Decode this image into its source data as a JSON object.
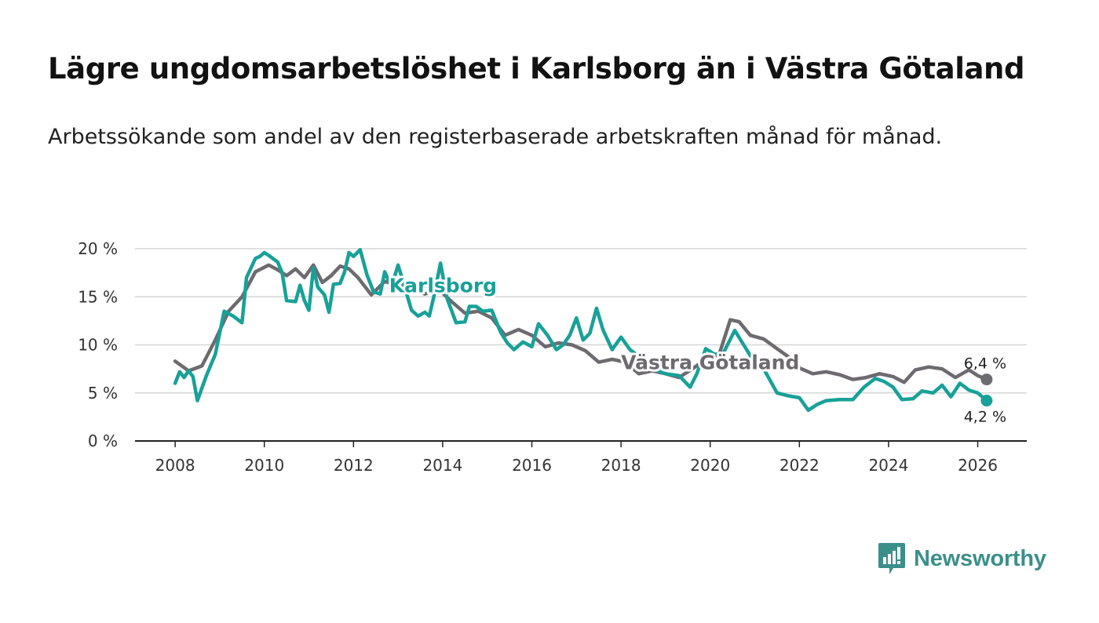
{
  "title": "Lägre ungdomsarbetslöshet i Karlsborg än i Västra Götaland",
  "subtitle": "Arbetssökande som andel av den registerbaserade arbetskraften månad för månad.",
  "brand": {
    "name": "Newsworthy",
    "color": "#3a8f8b"
  },
  "chart_data": {
    "type": "line",
    "title": "Lägre ungdomsarbetslöshet i Karlsborg än i Västra Götaland",
    "xlabel": "",
    "ylabel": "",
    "xlim": [
      2007.1,
      2027.1
    ],
    "ylim": [
      0,
      20
    ],
    "grid": true,
    "y_ticks": [
      0,
      5,
      10,
      15,
      20
    ],
    "y_tick_labels": [
      "0 %",
      "5 %",
      "10 %",
      "15 %",
      "20 %"
    ],
    "x_ticks": [
      2008,
      2010,
      2012,
      2014,
      2016,
      2018,
      2020,
      2022,
      2024,
      2026
    ],
    "x_tick_labels": [
      "2008",
      "2010",
      "2012",
      "2014",
      "2016",
      "2018",
      "2020",
      "2022",
      "2024",
      "2026"
    ],
    "series": [
      {
        "name": "Västra Götaland",
        "color": "#6d6a70",
        "end_label": "6,4 %",
        "points": [
          [
            2008.0,
            8.3
          ],
          [
            2008.3,
            7.3
          ],
          [
            2008.6,
            7.8
          ],
          [
            2008.9,
            10.5
          ],
          [
            2009.2,
            13.5
          ],
          [
            2009.5,
            15.0
          ],
          [
            2009.8,
            17.6
          ],
          [
            2010.1,
            18.3
          ],
          [
            2010.3,
            17.8
          ],
          [
            2010.5,
            17.2
          ],
          [
            2010.7,
            17.9
          ],
          [
            2010.9,
            17.0
          ],
          [
            2011.1,
            18.3
          ],
          [
            2011.3,
            16.5
          ],
          [
            2011.5,
            17.2
          ],
          [
            2011.7,
            18.2
          ],
          [
            2011.9,
            17.9
          ],
          [
            2012.1,
            17.0
          ],
          [
            2012.4,
            15.2
          ],
          [
            2012.7,
            16.6
          ],
          [
            2013.0,
            16.2
          ],
          [
            2013.3,
            15.8
          ],
          [
            2013.6,
            15.3
          ],
          [
            2013.9,
            15.8
          ],
          [
            2014.2,
            14.5
          ],
          [
            2014.5,
            13.3
          ],
          [
            2014.8,
            13.5
          ],
          [
            2015.1,
            12.8
          ],
          [
            2015.4,
            11.0
          ],
          [
            2015.7,
            11.6
          ],
          [
            2016.0,
            11.0
          ],
          [
            2016.3,
            9.8
          ],
          [
            2016.6,
            10.2
          ],
          [
            2016.9,
            10.0
          ],
          [
            2017.2,
            9.4
          ],
          [
            2017.5,
            8.2
          ],
          [
            2017.8,
            8.5
          ],
          [
            2018.1,
            8.2
          ],
          [
            2018.4,
            7.0
          ],
          [
            2018.7,
            7.3
          ],
          [
            2019.0,
            7.0
          ],
          [
            2019.3,
            6.6
          ],
          [
            2019.6,
            7.5
          ],
          [
            2019.9,
            8.5
          ],
          [
            2020.2,
            9.0
          ],
          [
            2020.45,
            12.6
          ],
          [
            2020.65,
            12.4
          ],
          [
            2020.9,
            11.0
          ],
          [
            2021.2,
            10.6
          ],
          [
            2021.5,
            9.6
          ],
          [
            2021.8,
            8.6
          ],
          [
            2022.0,
            7.6
          ],
          [
            2022.3,
            7.0
          ],
          [
            2022.6,
            7.2
          ],
          [
            2022.9,
            6.9
          ],
          [
            2023.2,
            6.4
          ],
          [
            2023.5,
            6.6
          ],
          [
            2023.8,
            7.0
          ],
          [
            2024.1,
            6.7
          ],
          [
            2024.35,
            6.1
          ],
          [
            2024.6,
            7.4
          ],
          [
            2024.9,
            7.7
          ],
          [
            2025.2,
            7.5
          ],
          [
            2025.5,
            6.6
          ],
          [
            2025.8,
            7.4
          ],
          [
            2026.0,
            6.8
          ],
          [
            2026.2,
            6.4
          ]
        ]
      },
      {
        "name": "Karlsborg",
        "color": "#18a198",
        "end_label": "4,2 %",
        "points": [
          [
            2008.0,
            6.0
          ],
          [
            2008.1,
            7.2
          ],
          [
            2008.2,
            6.6
          ],
          [
            2008.3,
            7.3
          ],
          [
            2008.4,
            6.7
          ],
          [
            2008.5,
            4.2
          ],
          [
            2008.7,
            6.8
          ],
          [
            2008.9,
            9.0
          ],
          [
            2009.1,
            13.5
          ],
          [
            2009.3,
            13.0
          ],
          [
            2009.5,
            12.3
          ],
          [
            2009.6,
            17.0
          ],
          [
            2009.8,
            19.0
          ],
          [
            2009.9,
            19.2
          ],
          [
            2010.0,
            19.6
          ],
          [
            2010.1,
            19.3
          ],
          [
            2010.3,
            18.6
          ],
          [
            2010.4,
            17.5
          ],
          [
            2010.5,
            14.6
          ],
          [
            2010.7,
            14.5
          ],
          [
            2010.8,
            16.2
          ],
          [
            2010.9,
            14.6
          ],
          [
            2011.0,
            13.6
          ],
          [
            2011.1,
            18.0
          ],
          [
            2011.2,
            16.0
          ],
          [
            2011.35,
            15.2
          ],
          [
            2011.45,
            13.4
          ],
          [
            2011.55,
            16.3
          ],
          [
            2011.7,
            16.4
          ],
          [
            2011.8,
            17.6
          ],
          [
            2011.9,
            19.6
          ],
          [
            2012.0,
            19.2
          ],
          [
            2012.15,
            19.9
          ],
          [
            2012.3,
            17.3
          ],
          [
            2012.45,
            15.5
          ],
          [
            2012.6,
            15.3
          ],
          [
            2012.7,
            17.6
          ],
          [
            2012.85,
            16.0
          ],
          [
            2013.0,
            18.3
          ],
          [
            2013.15,
            16.0
          ],
          [
            2013.3,
            13.6
          ],
          [
            2013.45,
            13.0
          ],
          [
            2013.6,
            13.4
          ],
          [
            2013.7,
            13.0
          ],
          [
            2013.8,
            15.0
          ],
          [
            2013.95,
            18.5
          ],
          [
            2014.1,
            14.8
          ],
          [
            2014.3,
            12.3
          ],
          [
            2014.5,
            12.4
          ],
          [
            2014.6,
            14.0
          ],
          [
            2014.75,
            14.0
          ],
          [
            2014.9,
            13.5
          ],
          [
            2015.1,
            13.6
          ],
          [
            2015.3,
            11.3
          ],
          [
            2015.45,
            10.2
          ],
          [
            2015.6,
            9.5
          ],
          [
            2015.8,
            10.3
          ],
          [
            2016.0,
            9.8
          ],
          [
            2016.15,
            12.2
          ],
          [
            2016.35,
            11.0
          ],
          [
            2016.55,
            9.5
          ],
          [
            2016.7,
            10.0
          ],
          [
            2016.85,
            11.0
          ],
          [
            2017.0,
            12.8
          ],
          [
            2017.15,
            10.5
          ],
          [
            2017.3,
            11.2
          ],
          [
            2017.45,
            13.8
          ],
          [
            2017.6,
            11.5
          ],
          [
            2017.8,
            9.5
          ],
          [
            2018.0,
            10.8
          ],
          [
            2018.2,
            9.5
          ],
          [
            2018.4,
            8.8
          ],
          [
            2018.7,
            7.5
          ],
          [
            2019.0,
            7.0
          ],
          [
            2019.3,
            6.8
          ],
          [
            2019.55,
            5.6
          ],
          [
            2019.7,
            7.0
          ],
          [
            2019.9,
            9.6
          ],
          [
            2020.1,
            9.0
          ],
          [
            2020.3,
            9.2
          ],
          [
            2020.55,
            11.5
          ],
          [
            2020.75,
            10.0
          ],
          [
            2020.95,
            8.5
          ],
          [
            2021.2,
            7.5
          ],
          [
            2021.5,
            5.0
          ],
          [
            2021.75,
            4.7
          ],
          [
            2022.0,
            4.5
          ],
          [
            2022.2,
            3.2
          ],
          [
            2022.4,
            3.8
          ],
          [
            2022.6,
            4.2
          ],
          [
            2022.9,
            4.3
          ],
          [
            2023.2,
            4.3
          ],
          [
            2023.45,
            5.6
          ],
          [
            2023.7,
            6.5
          ],
          [
            2023.9,
            6.2
          ],
          [
            2024.1,
            5.6
          ],
          [
            2024.3,
            4.3
          ],
          [
            2024.55,
            4.4
          ],
          [
            2024.75,
            5.2
          ],
          [
            2025.0,
            5.0
          ],
          [
            2025.2,
            5.8
          ],
          [
            2025.4,
            4.6
          ],
          [
            2025.6,
            6.0
          ],
          [
            2025.8,
            5.3
          ],
          [
            2026.0,
            5.0
          ],
          [
            2026.2,
            4.2
          ]
        ]
      }
    ],
    "annotations": [
      {
        "text": "Karlsborg",
        "series": "Karlsborg",
        "at": [
          2012.8,
          16.2
        ]
      },
      {
        "text": "Västra Götaland",
        "series": "Västra Götaland",
        "at": [
          2018.0,
          8.2
        ]
      }
    ]
  }
}
